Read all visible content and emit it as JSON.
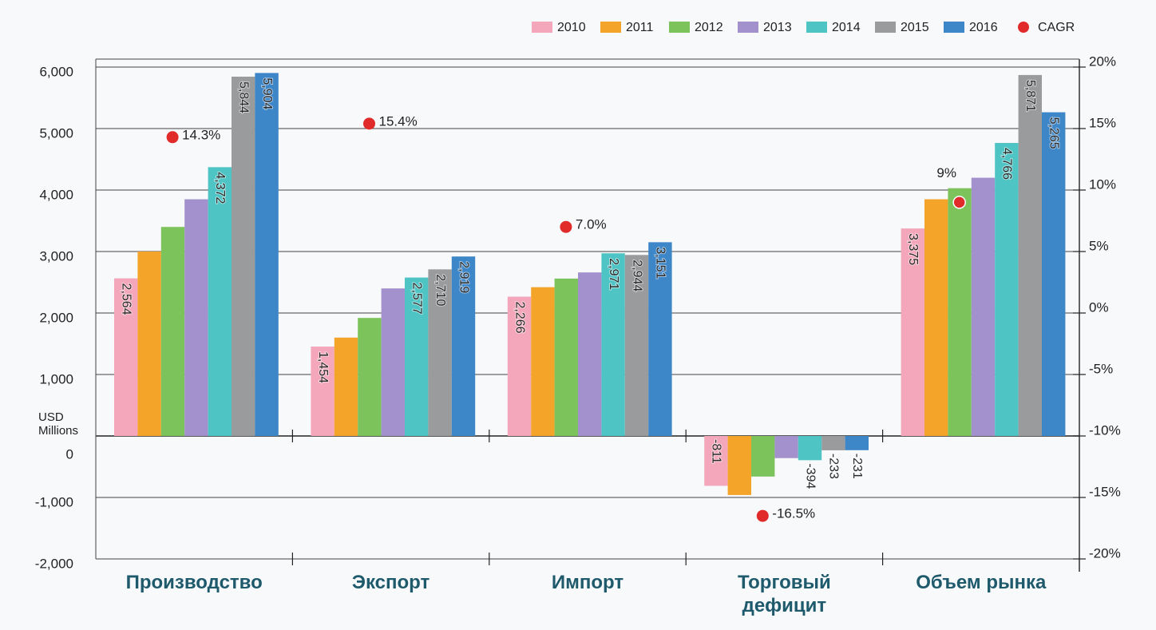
{
  "chart_data": {
    "type": "bar",
    "y_label": "USD Millions",
    "categories": [
      "Производство",
      "Экспорт",
      "Импорт",
      "Торговый дефицит",
      "Объем рынка"
    ],
    "series": [
      {
        "name": "2010",
        "color": "#f4a7ba",
        "values": [
          2564,
          1454,
          2266,
          -811,
          3375
        ],
        "value_labels": [
          "2,564",
          "1,454",
          "2,266",
          "-811",
          "3,375"
        ]
      },
      {
        "name": "2011",
        "color": "#f5a42a",
        "values": [
          3000,
          1600,
          2420,
          -960,
          3850
        ],
        "value_labels": [
          null,
          null,
          null,
          null,
          null
        ]
      },
      {
        "name": "2012",
        "color": "#7dc35b",
        "values": [
          3400,
          1920,
          2560,
          -660,
          4030
        ],
        "value_labels": [
          null,
          null,
          null,
          null,
          null
        ]
      },
      {
        "name": "2013",
        "color": "#a291cc",
        "values": [
          3850,
          2400,
          2660,
          -360,
          4200
        ],
        "value_labels": [
          null,
          null,
          null,
          null,
          null
        ]
      },
      {
        "name": "2014",
        "color": "#4fc4c4",
        "values": [
          4372,
          2577,
          2971,
          -394,
          4766
        ],
        "value_labels": [
          "4,372",
          "2,577",
          "2,971",
          "-394",
          "4,766"
        ]
      },
      {
        "name": "2015",
        "color": "#9a9b9d",
        "values": [
          5844,
          2710,
          2944,
          -233,
          5871
        ],
        "value_labels": [
          "5,844",
          "2,710",
          "2,944",
          "-233",
          "5,871"
        ]
      },
      {
        "name": "2016",
        "color": "#3d86c8",
        "values": [
          5904,
          2919,
          3151,
          -231,
          5265
        ],
        "value_labels": [
          "5,904",
          "2,919",
          "3,151",
          "-231",
          "5,265"
        ]
      },
      {
        "name": "CAGR",
        "type": "scatter",
        "axis": "y2",
        "color": "#e12a2a",
        "values": [
          14.3,
          15.4,
          7.0,
          -16.5,
          9
        ],
        "value_labels": [
          "14.3%",
          "15.4%",
          "7.0%",
          "-16.5%",
          "9%"
        ]
      }
    ],
    "ylim": [
      -2000,
      6000
    ],
    "yticks": [
      {
        "value": -2000,
        "label": "-2,000"
      },
      {
        "value": -1000,
        "label": "-1,000"
      },
      0,
      {
        "value": 1000,
        "label": "1,000"
      },
      {
        "value": 2000,
        "label": "2,000"
      },
      {
        "value": 3000,
        "label": "3,000"
      },
      {
        "value": 4000,
        "label": "4,000"
      },
      {
        "value": 5000,
        "label": "5,000"
      },
      {
        "value": 6000,
        "label": "6,000"
      }
    ],
    "y2lim": [
      -20,
      20
    ],
    "y2ticks": [
      {
        "value": -20,
        "label": "-20%"
      },
      {
        "value": -15,
        "label": "-15%"
      },
      {
        "value": -10,
        "label": "-10%"
      },
      {
        "value": -5,
        "label": "-5%"
      },
      {
        "value": 0,
        "label": "0%"
      },
      {
        "value": 5,
        "label": "5%"
      },
      {
        "value": 10,
        "label": "10%"
      },
      {
        "value": 15,
        "label": "15%"
      },
      {
        "value": 20,
        "label": "20%"
      }
    ],
    "grid": true,
    "legend": "top-right"
  }
}
